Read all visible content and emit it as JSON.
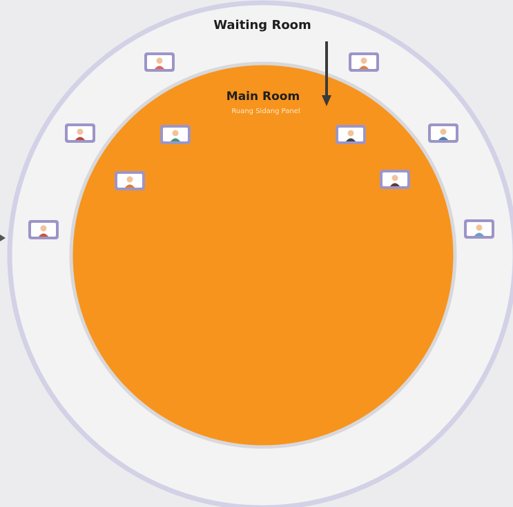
{
  "title": "Waiting Room",
  "main_room": {
    "title": "Main Room",
    "subtitle": "Ruang Sidang Panel"
  }
}
